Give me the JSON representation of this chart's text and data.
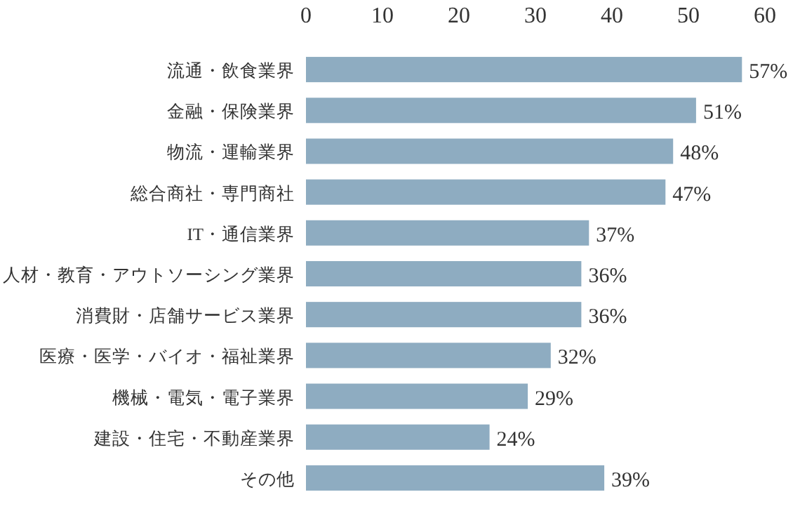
{
  "chart_data": {
    "type": "bar",
    "orientation": "horizontal",
    "categories": [
      "流通・飲食業界",
      "金融・保険業界",
      "物流・運輸業界",
      "総合商社・専門商社",
      "IT・通信業界",
      "人材・教育・アウトソーシング業界",
      "消費財・店舗サービス業界",
      "医療・医学・バイオ・福祉業界",
      "機械・電気・電子業界",
      "建設・住宅・不動産業界",
      "その他"
    ],
    "values": [
      57,
      51,
      48,
      47,
      37,
      36,
      36,
      32,
      29,
      24,
      39
    ],
    "value_labels": [
      "57%",
      "51%",
      "48%",
      "47%",
      "37%",
      "36%",
      "36%",
      "32%",
      "29%",
      "24%",
      "39%"
    ],
    "color": "#8eacc1",
    "xlim": [
      0,
      60
    ],
    "xticks": [
      0,
      10,
      20,
      30,
      40,
      50,
      60
    ],
    "grid": false
  }
}
